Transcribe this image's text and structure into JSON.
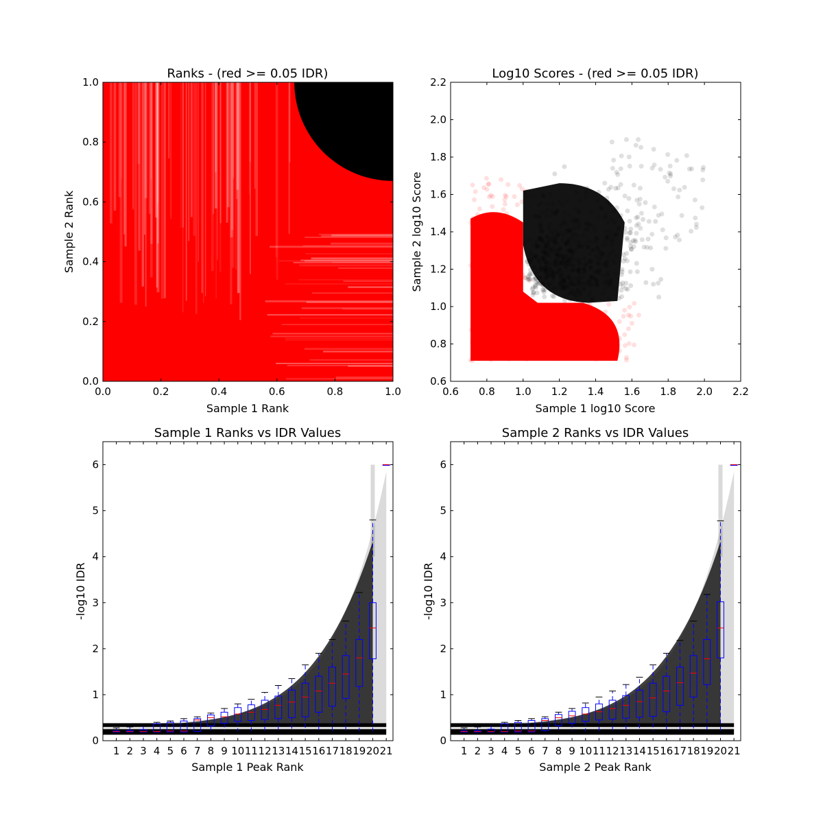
{
  "chart_data": [
    {
      "type": "scatter",
      "title": "Ranks - (red >= 0.05 IDR)",
      "xlabel": "Sample 1 Rank",
      "ylabel": "Sample 2 Rank",
      "xlim": [
        0.0,
        1.0
      ],
      "ylim": [
        0.0,
        1.0
      ],
      "xticks": [
        "0.0",
        "0.2",
        "0.4",
        "0.6",
        "0.8",
        "1.0"
      ],
      "yticks": [
        "0.0",
        "0.2",
        "0.4",
        "0.6",
        "0.8",
        "1.0"
      ],
      "colors": {
        "red": "#ff0000",
        "black": "#000000"
      },
      "series": [
        {
          "color": "red",
          "region": "x in [0,1], y in [0,1] outside the black region"
        },
        {
          "color": "black",
          "region": "quarter-disc centred near (1.0, 1.0), radius ~0.34; bounds x 0.66-1.0, y 0.66-1.0"
        }
      ]
    },
    {
      "type": "scatter",
      "title": "Log10 Scores - (red >= 0.05 IDR)",
      "xlabel": "Sample 1 log10 Score",
      "ylabel": "Sample 2 log10 Score",
      "xlim": [
        0.6,
        2.2
      ],
      "ylim": [
        0.6,
        2.2
      ],
      "xticks": [
        "0.6",
        "0.8",
        "1.0",
        "1.2",
        "1.4",
        "1.6",
        "1.8",
        "2.0",
        "2.2"
      ],
      "yticks": [
        "0.6",
        "0.8",
        "1.0",
        "1.2",
        "1.4",
        "1.6",
        "1.8",
        "2.0",
        "2.2"
      ],
      "colors": {
        "red": "#ff0000",
        "black": "#000000"
      },
      "series": [
        {
          "color": "red",
          "min_x": 0.71,
          "min_y": 0.71,
          "extent": "dense block x 0.71-1.6, y 0.71-1.7"
        },
        {
          "color": "black",
          "extent": "x 1.0-2.05, y 1.0-2.02; dense core near (1.3, 1.25)"
        }
      ]
    },
    {
      "type": "box",
      "title": "Sample 1 Ranks vs IDR Values",
      "xlabel": "Sample 1 Peak Rank",
      "ylabel": "-log10 IDR",
      "ylim": [
        0,
        6.5
      ],
      "yticks": [
        "0",
        "1",
        "2",
        "3",
        "4",
        "5",
        "6"
      ],
      "xticks": [
        "1",
        "2",
        "3",
        "4",
        "5",
        "6",
        "7",
        "8",
        "9",
        "10",
        "11",
        "12",
        "13",
        "14",
        "15",
        "16",
        "17",
        "18",
        "19",
        "20",
        "21"
      ],
      "colors": {
        "box": "#0000ff",
        "median": "#ff0000",
        "points": "#000000"
      },
      "boxes": [
        {
          "rank": 1,
          "q1": 0.19,
          "median": 0.2,
          "q3": 0.21,
          "whislo": 0.19,
          "whishi": 0.28
        },
        {
          "rank": 2,
          "q1": 0.19,
          "median": 0.2,
          "q3": 0.22,
          "whislo": 0.19,
          "whishi": 0.3
        },
        {
          "rank": 3,
          "q1": 0.19,
          "median": 0.2,
          "q3": 0.24,
          "whislo": 0.19,
          "whishi": 0.32
        },
        {
          "rank": 4,
          "q1": 0.19,
          "median": 0.2,
          "q3": 0.37,
          "whislo": 0.19,
          "whishi": 0.4
        },
        {
          "rank": 5,
          "q1": 0.19,
          "median": 0.21,
          "q3": 0.4,
          "whislo": 0.19,
          "whishi": 0.43
        },
        {
          "rank": 6,
          "q1": 0.19,
          "median": 0.21,
          "q3": 0.43,
          "whislo": 0.19,
          "whishi": 0.48
        },
        {
          "rank": 7,
          "q1": 0.2,
          "median": 0.45,
          "q3": 0.48,
          "whislo": 0.19,
          "whishi": 0.52
        },
        {
          "rank": 8,
          "q1": 0.32,
          "median": 0.5,
          "q3": 0.56,
          "whislo": 0.2,
          "whishi": 0.6
        },
        {
          "rank": 9,
          "q1": 0.38,
          "median": 0.52,
          "q3": 0.62,
          "whislo": 0.2,
          "whishi": 0.7
        },
        {
          "rank": 10,
          "q1": 0.42,
          "median": 0.58,
          "q3": 0.72,
          "whislo": 0.2,
          "whishi": 0.8
        },
        {
          "rank": 11,
          "q1": 0.44,
          "median": 0.62,
          "q3": 0.78,
          "whislo": 0.2,
          "whishi": 0.9
        },
        {
          "rank": 12,
          "q1": 0.46,
          "median": 0.68,
          "q3": 0.88,
          "whislo": 0.2,
          "whishi": 1.05
        },
        {
          "rank": 13,
          "q1": 0.48,
          "median": 0.77,
          "q3": 0.97,
          "whislo": 0.2,
          "whishi": 1.2
        },
        {
          "rank": 14,
          "q1": 0.5,
          "median": 0.84,
          "q3": 1.1,
          "whislo": 0.2,
          "whishi": 1.35
        },
        {
          "rank": 15,
          "q1": 0.52,
          "median": 0.95,
          "q3": 1.25,
          "whislo": 0.2,
          "whishi": 1.65
        },
        {
          "rank": 16,
          "q1": 0.62,
          "median": 1.08,
          "q3": 1.4,
          "whislo": 0.2,
          "whishi": 1.9
        },
        {
          "rank": 17,
          "q1": 0.75,
          "median": 1.25,
          "q3": 1.6,
          "whislo": 0.2,
          "whishi": 2.2
        },
        {
          "rank": 18,
          "q1": 0.92,
          "median": 1.45,
          "q3": 1.85,
          "whislo": 0.2,
          "whishi": 2.6
        },
        {
          "rank": 19,
          "q1": 1.18,
          "median": 1.8,
          "q3": 2.2,
          "whislo": 0.2,
          "whishi": 3.22
        },
        {
          "rank": 20,
          "q1": 1.78,
          "median": 2.45,
          "q3": 3.0,
          "whislo": 0.2,
          "whishi": 4.8
        },
        {
          "rank": 21,
          "q1": 6.0,
          "median": 6.0,
          "q3": 6.0,
          "whislo": 6.0,
          "whishi": 6.0
        }
      ]
    },
    {
      "type": "box",
      "title": "Sample 2 Ranks vs IDR Values",
      "xlabel": "Sample 2 Peak Rank",
      "ylabel": "-log10 IDR",
      "ylim": [
        0,
        6.5
      ],
      "yticks": [
        "0",
        "1",
        "2",
        "3",
        "4",
        "5",
        "6"
      ],
      "xticks": [
        "1",
        "2",
        "3",
        "4",
        "5",
        "6",
        "7",
        "8",
        "9",
        "10",
        "11",
        "12",
        "13",
        "14",
        "15",
        "16",
        "17",
        "18",
        "19",
        "20",
        "21"
      ],
      "colors": {
        "box": "#0000ff",
        "median": "#ff0000",
        "points": "#000000"
      },
      "boxes": [
        {
          "rank": 1,
          "q1": 0.19,
          "median": 0.2,
          "q3": 0.21,
          "whislo": 0.19,
          "whishi": 0.28
        },
        {
          "rank": 2,
          "q1": 0.19,
          "median": 0.2,
          "q3": 0.22,
          "whislo": 0.19,
          "whishi": 0.3
        },
        {
          "rank": 3,
          "q1": 0.19,
          "median": 0.2,
          "q3": 0.25,
          "whislo": 0.19,
          "whishi": 0.33
        },
        {
          "rank": 4,
          "q1": 0.19,
          "median": 0.2,
          "q3": 0.37,
          "whislo": 0.19,
          "whishi": 0.4
        },
        {
          "rank": 5,
          "q1": 0.19,
          "median": 0.21,
          "q3": 0.4,
          "whislo": 0.19,
          "whishi": 0.44
        },
        {
          "rank": 6,
          "q1": 0.19,
          "median": 0.21,
          "q3": 0.44,
          "whislo": 0.19,
          "whishi": 0.48
        },
        {
          "rank": 7,
          "q1": 0.22,
          "median": 0.44,
          "q3": 0.48,
          "whislo": 0.19,
          "whishi": 0.52
        },
        {
          "rank": 8,
          "q1": 0.33,
          "median": 0.5,
          "q3": 0.57,
          "whislo": 0.2,
          "whishi": 0.62
        },
        {
          "rank": 9,
          "q1": 0.38,
          "median": 0.54,
          "q3": 0.64,
          "whislo": 0.2,
          "whishi": 0.7
        },
        {
          "rank": 10,
          "q1": 0.42,
          "median": 0.58,
          "q3": 0.72,
          "whislo": 0.2,
          "whishi": 0.82
        },
        {
          "rank": 11,
          "q1": 0.45,
          "median": 0.63,
          "q3": 0.8,
          "whislo": 0.2,
          "whishi": 0.95
        },
        {
          "rank": 12,
          "q1": 0.47,
          "median": 0.7,
          "q3": 0.88,
          "whislo": 0.2,
          "whishi": 1.08
        },
        {
          "rank": 13,
          "q1": 0.49,
          "median": 0.77,
          "q3": 0.98,
          "whislo": 0.2,
          "whishi": 1.22
        },
        {
          "rank": 14,
          "q1": 0.51,
          "median": 0.85,
          "q3": 1.1,
          "whislo": 0.2,
          "whishi": 1.38
        },
        {
          "rank": 15,
          "q1": 0.53,
          "median": 0.93,
          "q3": 1.25,
          "whislo": 0.2,
          "whishi": 1.65
        },
        {
          "rank": 16,
          "q1": 0.63,
          "median": 1.08,
          "q3": 1.4,
          "whislo": 0.2,
          "whishi": 1.9
        },
        {
          "rank": 17,
          "q1": 0.77,
          "median": 1.26,
          "q3": 1.6,
          "whislo": 0.2,
          "whishi": 2.18
        },
        {
          "rank": 18,
          "q1": 0.95,
          "median": 1.47,
          "q3": 1.85,
          "whislo": 0.2,
          "whishi": 2.6
        },
        {
          "rank": 19,
          "q1": 1.22,
          "median": 1.78,
          "q3": 2.2,
          "whislo": 0.2,
          "whishi": 3.18
        },
        {
          "rank": 20,
          "q1": 1.8,
          "median": 2.45,
          "q3": 3.02,
          "whislo": 0.2,
          "whishi": 4.78
        },
        {
          "rank": 21,
          "q1": 6.0,
          "median": 6.0,
          "q3": 6.0,
          "whislo": 6.0,
          "whishi": 6.0
        }
      ]
    }
  ]
}
